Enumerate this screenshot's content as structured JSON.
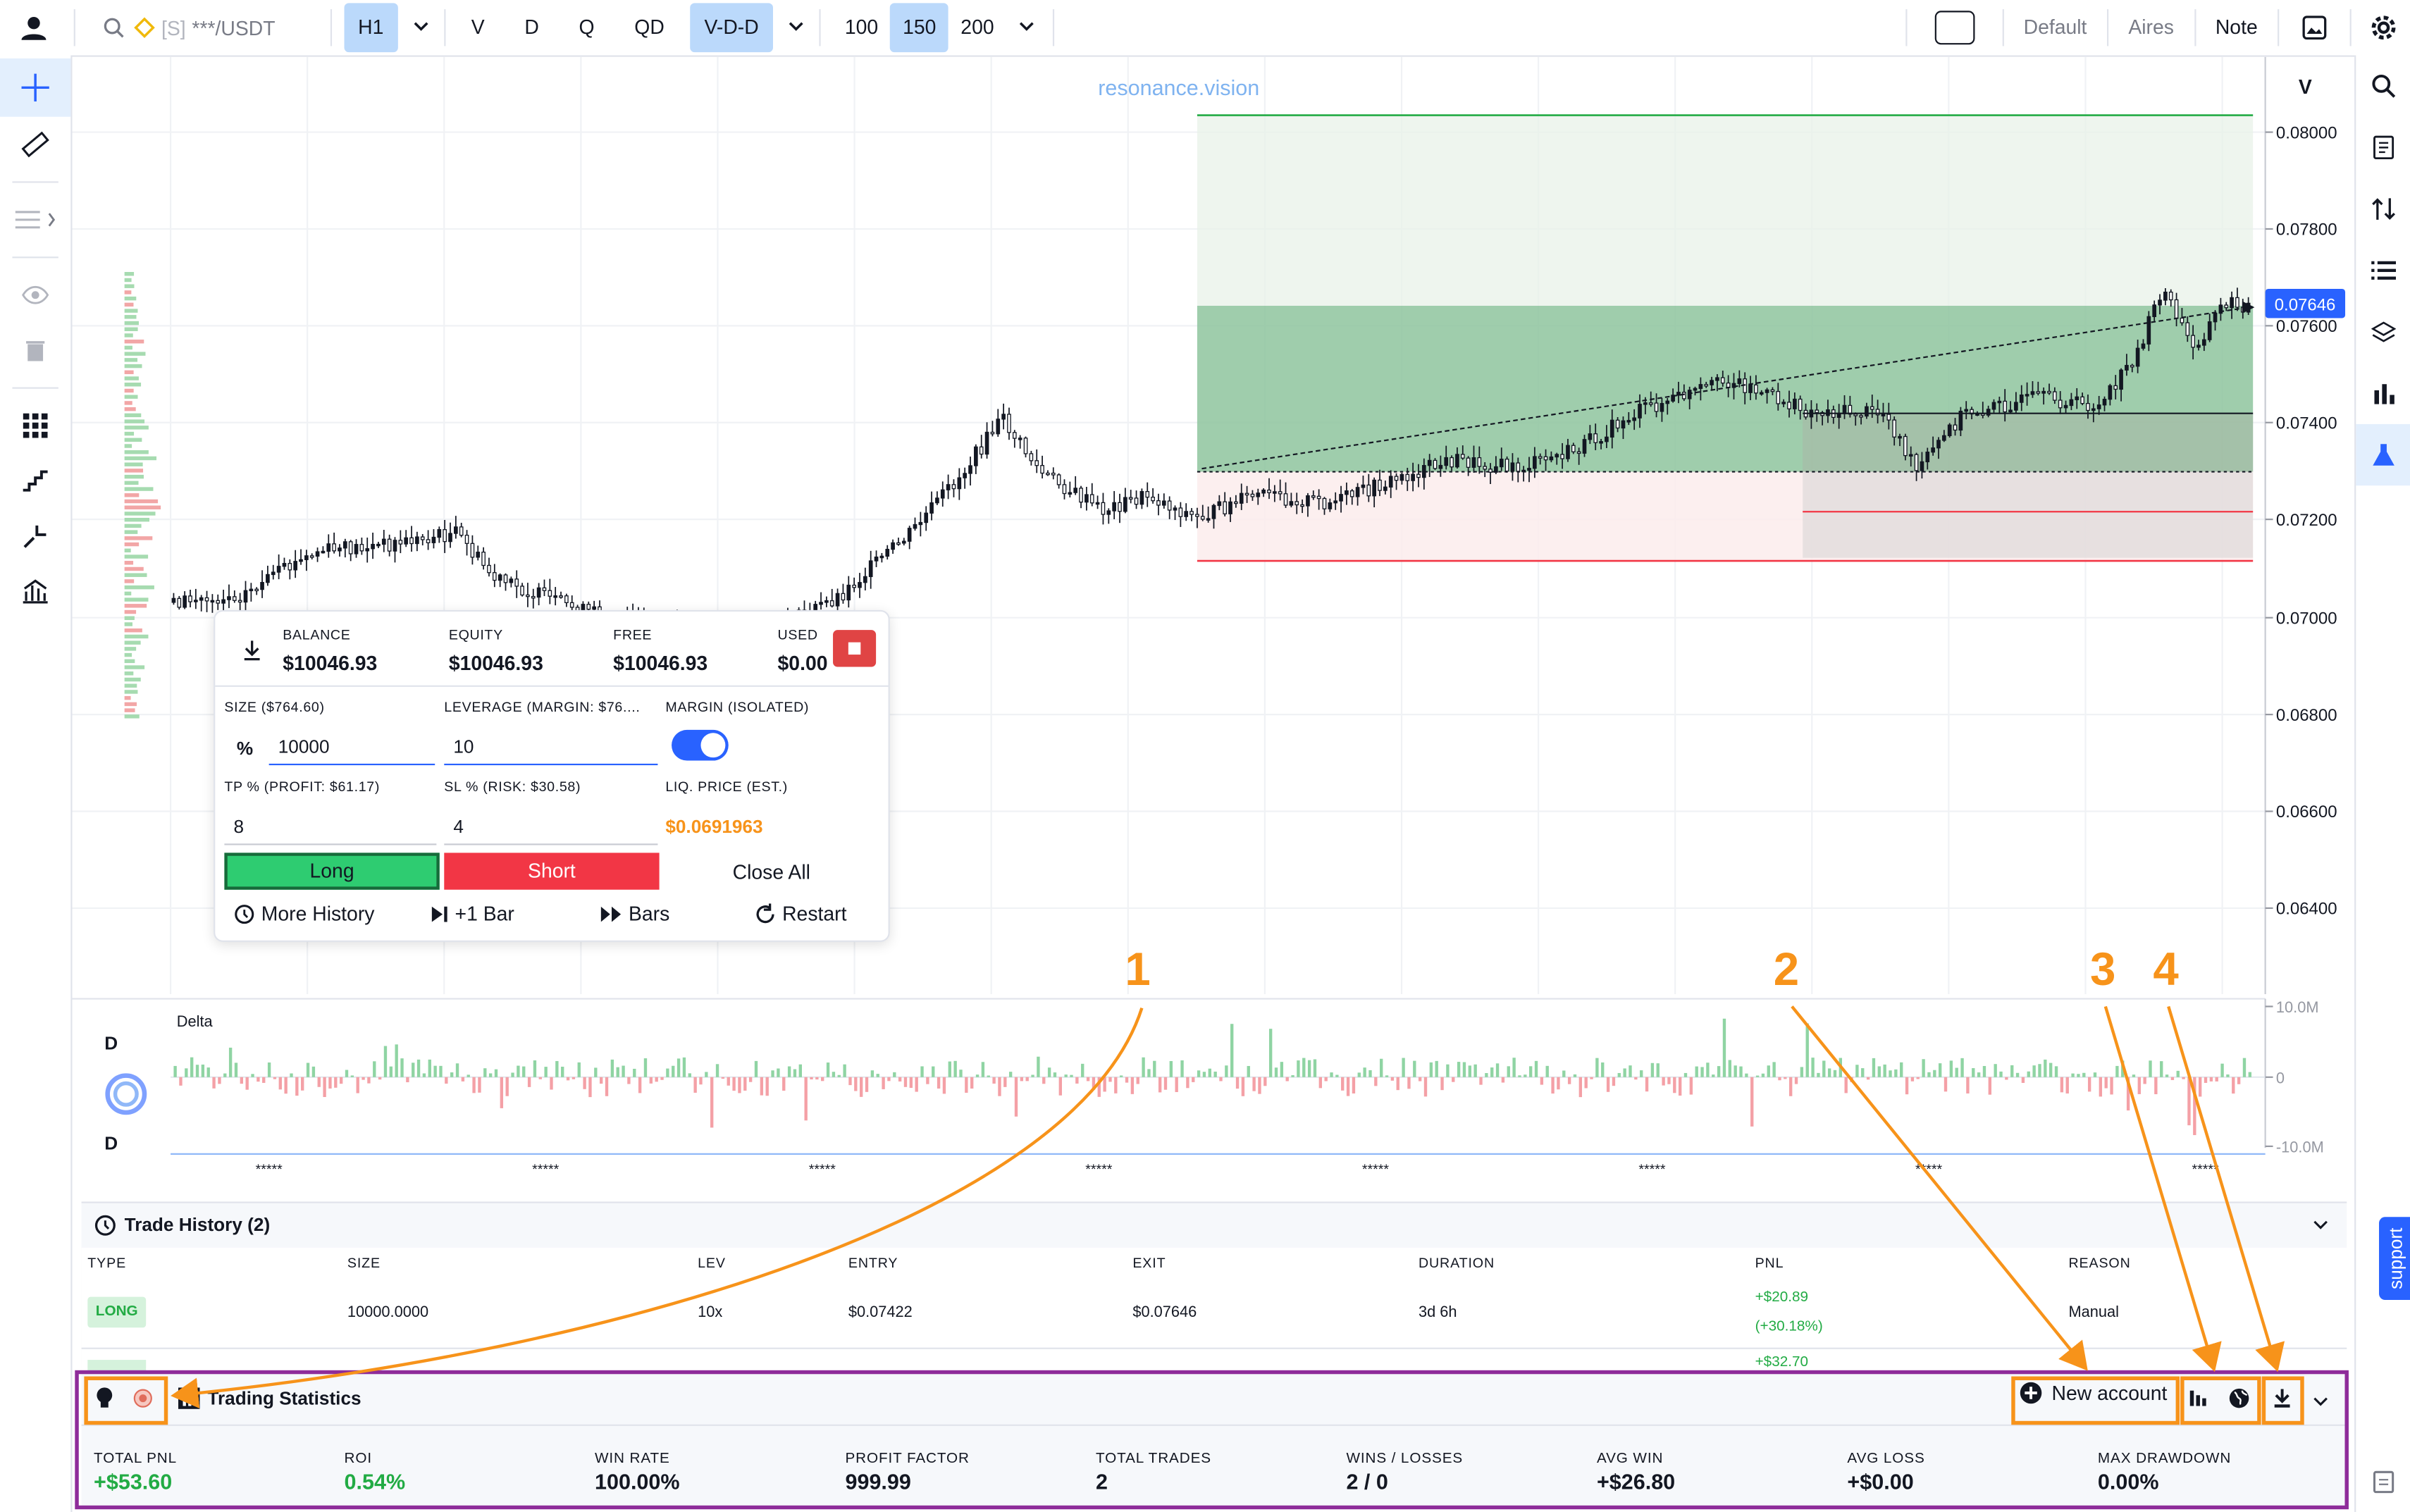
{
  "topbar": {
    "symbol_prefix": "[S]",
    "symbol": "***/USDT",
    "intervals": [
      {
        "label": "H1",
        "active": true
      },
      {
        "label": "V",
        "active": false
      },
      {
        "label": "D",
        "active": false
      },
      {
        "label": "Q",
        "active": false
      },
      {
        "label": "QD",
        "active": false
      },
      {
        "label": "V-D-D",
        "active": true
      }
    ],
    "bar_counts": [
      {
        "label": "100",
        "active": false
      },
      {
        "label": "150",
        "active": true
      },
      {
        "label": "200",
        "active": false
      }
    ],
    "right_items": [
      "Default",
      "Aires",
      "Note"
    ]
  },
  "chart": {
    "watermark": "resonance.vision",
    "price_axis_header": "V",
    "price_ticks": [
      "0.08000",
      "0.07800",
      "0.07600",
      "0.07400",
      "0.07200",
      "0.07000",
      "0.06800",
      "0.06600",
      "0.06400"
    ],
    "current_price": "0.07646",
    "delta_label": "Delta",
    "delta_side_top": "D",
    "delta_side_bottom": "D",
    "delta_ticks": [
      "10.0M",
      "0",
      "-10.0M"
    ],
    "time_ticks": [
      "*****",
      "*****",
      "*****",
      "*****",
      "*****",
      "*****",
      "*****",
      "*****"
    ]
  },
  "order_panel": {
    "balance_label": "BALANCE",
    "balance": "$10046.93",
    "equity_label": "EQUITY",
    "equity": "$10046.93",
    "free_label": "FREE",
    "free": "$10046.93",
    "used_label": "USED",
    "used": "$0.00",
    "size_label": "SIZE ($764.60)",
    "leverage_label": "LEVERAGE (MARGIN: $76....",
    "margin_label": "MARGIN (ISOLATED)",
    "size_unit": "%",
    "size_value": "10000",
    "leverage_value": "10",
    "tp_label": "TP % (PROFIT: $61.17)",
    "sl_label": "SL % (RISK: $30.58)",
    "liq_label": "LIQ. PRICE (EST.)",
    "tp_value": "8",
    "sl_value": "4",
    "liq_value": "$0.0691963",
    "long_label": "Long",
    "short_label": "Short",
    "close_all_label": "Close All",
    "more_history_label": "More History",
    "plus_bar_label": "+1 Bar",
    "bars_label": "Bars",
    "restart_label": "Restart"
  },
  "trade_history": {
    "title": "Trade History (2)",
    "columns": [
      "TYPE",
      "SIZE",
      "LEV",
      "ENTRY",
      "EXIT",
      "DURATION",
      "PNL",
      "REASON"
    ],
    "rows": [
      {
        "type": "LONG",
        "size": "10000.0000",
        "lev": "10x",
        "entry": "$0.07422",
        "exit": "$0.07646",
        "duration": "3d 6h",
        "pnl": "+$20.89",
        "pnl_pct": "(+30.18%)",
        "reason": "Manual"
      },
      {
        "pnl": "+$32.70"
      }
    ]
  },
  "trading_stats": {
    "title": "Trading Statistics",
    "new_account_label": "New account",
    "stats": [
      {
        "label": "TOTAL PNL",
        "value": "+$53.60",
        "color": "#22ab44"
      },
      {
        "label": "ROI",
        "value": "0.54%",
        "color": "#22ab44"
      },
      {
        "label": "WIN RATE",
        "value": "100.00%",
        "color": "#131722"
      },
      {
        "label": "PROFIT FACTOR",
        "value": "999.99",
        "color": "#131722"
      },
      {
        "label": "TOTAL TRADES",
        "value": "2",
        "color": "#131722"
      },
      {
        "label": "WINS / LOSSES",
        "value": "2 / 0",
        "color": "#131722"
      },
      {
        "label": "AVG WIN",
        "value": "+$26.80",
        "color": "#131722"
      },
      {
        "label": "AVG LOSS",
        "value": "+$0.00",
        "color": "#131722"
      },
      {
        "label": "MAX DRAWDOWN",
        "value": "0.00%",
        "color": "#131722"
      }
    ]
  },
  "annotations": [
    "1",
    "2",
    "3",
    "4"
  ],
  "support_label": "support",
  "colors": {
    "accent": "#2962ff",
    "orange": "#f7931a",
    "purple": "#8e2c9a",
    "green": "#22ab44",
    "red": "#f23645"
  }
}
